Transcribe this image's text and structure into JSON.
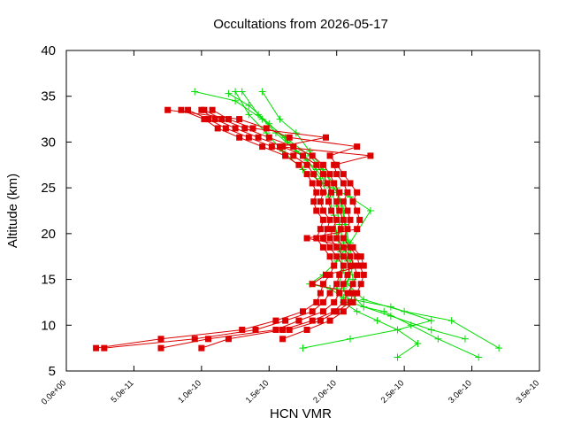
{
  "chart_data": {
    "type": "line",
    "title": "Occultations from 2026-05-17",
    "xlabel": "HCN VMR",
    "ylabel": "Altitude (km)",
    "xlim": [
      0,
      3.5e-10
    ],
    "ylim": [
      5,
      40
    ],
    "x_ticks": [
      0,
      5e-11,
      1e-10,
      1.5e-10,
      2e-10,
      2.5e-10,
      3e-10,
      3.5e-10
    ],
    "x_tick_labels": [
      "0.0e+00",
      "5.0e-11",
      "1.0e-10",
      "1.5e-10",
      "2.0e-10",
      "2.5e-10",
      "3.0e-10",
      "3.5e-10"
    ],
    "y_ticks": [
      5,
      10,
      15,
      20,
      25,
      30,
      35,
      40
    ],
    "y_tick_labels": [
      "5",
      "10",
      "15",
      "20",
      "25",
      "30",
      "35",
      "40"
    ],
    "grid": false,
    "legend": "none",
    "series": [
      {
        "marker": "plus",
        "color": "#00dd00",
        "profiles": [
          [
            [
              2.95e-10,
              8.5
            ],
            [
              2.7e-10,
              9.5
            ],
            [
              2.4e-10,
              11
            ],
            [
              2.1e-10,
              12.5
            ],
            [
              2.05e-10,
              14
            ],
            [
              2.1e-10,
              15.5
            ],
            [
              2.08e-10,
              17
            ],
            [
              2.05e-10,
              19
            ],
            [
              2.02e-10,
              21
            ],
            [
              2e-10,
              23
            ],
            [
              1.95e-10,
              25
            ],
            [
              1.85e-10,
              27
            ],
            [
              1.7e-10,
              29
            ],
            [
              1.55e-10,
              31
            ],
            [
              1.42e-10,
              33
            ],
            [
              1.3e-10,
              35.5
            ]
          ],
          [
            [
              3.2e-10,
              7.5
            ],
            [
              2.85e-10,
              10.5
            ],
            [
              2.5e-10,
              11.5
            ],
            [
              2.2e-10,
              12.8
            ],
            [
              2.08e-10,
              14.5
            ],
            [
              2.12e-10,
              16.5
            ],
            [
              2.1e-10,
              18.5
            ],
            [
              2.07e-10,
              20.5
            ],
            [
              2.05e-10,
              22.5
            ],
            [
              2e-10,
              24.5
            ],
            [
              1.92e-10,
              26.5
            ],
            [
              1.8e-10,
              28.5
            ],
            [
              1.62e-10,
              30.5
            ],
            [
              1.45e-10,
              32.5
            ],
            [
              1.25e-10,
              34.5
            ],
            [
              9.5e-11,
              35.5
            ]
          ],
          [
            [
              2.45e-10,
              6.5
            ],
            [
              2.6e-10,
              8
            ],
            [
              2.45e-10,
              9.5
            ],
            [
              2.3e-10,
              10.5
            ],
            [
              2.15e-10,
              11.5
            ],
            [
              2.05e-10,
              12.5
            ],
            [
              2e-10,
              14
            ],
            [
              2.05e-10,
              16
            ],
            [
              2.03e-10,
              18
            ],
            [
              2e-10,
              20
            ],
            [
              1.98e-10,
              22
            ],
            [
              1.94e-10,
              24
            ],
            [
              1.88e-10,
              26
            ],
            [
              1.78e-10,
              28
            ],
            [
              1.64e-10,
              30
            ],
            [
              1.5e-10,
              32
            ],
            [
              1.35e-10,
              34
            ],
            [
              1.2e-10,
              35.3
            ]
          ],
          [
            [
              1.75e-10,
              7.5
            ],
            [
              2.1e-10,
              8.5
            ],
            [
              2.45e-10,
              9.5
            ],
            [
              2.7e-10,
              10.5
            ],
            [
              2.4e-10,
              12
            ],
            [
              2.05e-10,
              13
            ],
            [
              1.95e-10,
              14
            ],
            [
              1.8e-10,
              14.5
            ],
            [
              1.9e-10,
              15.5
            ],
            [
              2e-10,
              17
            ],
            [
              2.1e-10,
              19
            ],
            [
              2.25e-10,
              22.5
            ],
            [
              2.1e-10,
              24
            ],
            [
              1.9e-10,
              25.5
            ],
            [
              1.75e-10,
              27
            ],
            [
              1.6e-10,
              29
            ],
            [
              1.48e-10,
              31
            ],
            [
              1.35e-10,
              33
            ],
            [
              1.25e-10,
              35.5
            ]
          ],
          [
            [
              3.05e-10,
              6.5
            ],
            [
              2.75e-10,
              8.5
            ],
            [
              2.55e-10,
              10
            ],
            [
              2.35e-10,
              11.5
            ],
            [
              2.2e-10,
              12
            ],
            [
              2.1e-10,
              13.5
            ],
            [
              2.12e-10,
              15
            ],
            [
              2.1e-10,
              17
            ],
            [
              2.08e-10,
              19
            ],
            [
              2.06e-10,
              21
            ],
            [
              2.04e-10,
              23
            ],
            [
              2e-10,
              25
            ],
            [
              1.9e-10,
              27
            ],
            [
              1.8e-10,
              29
            ],
            [
              1.7e-10,
              31
            ],
            [
              1.58e-10,
              32.5
            ],
            [
              1.45e-10,
              35.5
            ]
          ]
        ]
      },
      {
        "marker": "square",
        "color": "#dd0000",
        "profiles": [
          [
            [
              2.2e-11,
              7.5
            ],
            [
              7e-11,
              8.5
            ],
            [
              1.3e-10,
              9.5
            ],
            [
              1.55e-10,
              10.5
            ],
            [
              1.75e-10,
              11.5
            ],
            [
              1.85e-10,
              12.5
            ],
            [
              1.88e-10,
              13.5
            ],
            [
              1.9e-10,
              14.5
            ],
            [
              1.95e-10,
              15.5
            ],
            [
              1.98e-10,
              16.5
            ],
            [
              1.95e-10,
              17.5
            ],
            [
              1.9e-10,
              18.5
            ],
            [
              1.85e-10,
              19.5
            ],
            [
              1.88e-10,
              20.5
            ],
            [
              1.9e-10,
              21.5
            ],
            [
              1.85e-10,
              22.5
            ],
            [
              1.83e-10,
              23.5
            ],
            [
              1.85e-10,
              24.5
            ],
            [
              1.82e-10,
              25.5
            ],
            [
              1.78e-10,
              26.5
            ],
            [
              1.72e-10,
              27.5
            ],
            [
              1.62e-10,
              28.5
            ],
            [
              1.45e-10,
              29.5
            ],
            [
              1.28e-10,
              30.5
            ],
            [
              1.12e-10,
              31.5
            ],
            [
              1.02e-10,
              32.5
            ],
            [
              8.5e-11,
              33.5
            ]
          ],
          [
            [
              2.8e-11,
              7.5
            ],
            [
              9.5e-11,
              8.5
            ],
            [
              1.4e-10,
              9.5
            ],
            [
              1.62e-10,
              10.5
            ],
            [
              1.82e-10,
              11.5
            ],
            [
              1.9e-10,
              12.5
            ],
            [
              1.95e-10,
              13.5
            ],
            [
              2e-10,
              14.5
            ],
            [
              2.02e-10,
              15.5
            ],
            [
              2.05e-10,
              16.5
            ],
            [
              2e-10,
              17.5
            ],
            [
              1.95e-10,
              18.5
            ],
            [
              1.9e-10,
              19.5
            ],
            [
              1.93e-10,
              20.5
            ],
            [
              1.95e-10,
              21.5
            ],
            [
              1.9e-10,
              22.5
            ],
            [
              1.88e-10,
              23.5
            ],
            [
              1.9e-10,
              24.5
            ],
            [
              1.87e-10,
              25.5
            ],
            [
              1.83e-10,
              26.5
            ],
            [
              1.78e-10,
              27.5
            ],
            [
              1.68e-10,
              28.5
            ],
            [
              1.52e-10,
              29.5
            ],
            [
              1.35e-10,
              30.5
            ],
            [
              1.18e-10,
              31.5
            ],
            [
              1.05e-10,
              32.5
            ],
            [
              9e-11,
              33.5
            ]
          ],
          [
            [
              7e-11,
              7.5
            ],
            [
              1.05e-10,
              8.5
            ],
            [
              1.55e-10,
              9.5
            ],
            [
              1.72e-10,
              10.5
            ],
            [
              1.9e-10,
              11.5
            ],
            [
              1.98e-10,
              12.5
            ],
            [
              2.02e-10,
              13.5
            ],
            [
              2.05e-10,
              14.5
            ],
            [
              2.08e-10,
              15.5
            ],
            [
              2.1e-10,
              16.5
            ],
            [
              2.05e-10,
              17.5
            ],
            [
              2e-10,
              18.5
            ],
            [
              1.95e-10,
              19.5
            ],
            [
              1.97e-10,
              20.5
            ],
            [
              2e-10,
              21.5
            ],
            [
              1.96e-10,
              22.5
            ],
            [
              1.94e-10,
              23.5
            ],
            [
              1.96e-10,
              24.5
            ],
            [
              1.93e-10,
              25.5
            ],
            [
              1.9e-10,
              26.5
            ],
            [
              1.85e-10,
              27.5
            ],
            [
              1.75e-10,
              28.5
            ],
            [
              1.6e-10,
              29.5
            ],
            [
              1.42e-10,
              30.5
            ],
            [
              1.25e-10,
              31.5
            ],
            [
              1.1e-10,
              32.5
            ],
            [
              1e-10,
              33.5
            ]
          ],
          [
            [
              1e-10,
              7.5
            ],
            [
              1.2e-10,
              8.5
            ],
            [
              1.6e-10,
              9.5
            ],
            [
              1.82e-10,
              10.5
            ],
            [
              1.98e-10,
              11.5
            ],
            [
              2.05e-10,
              12.5
            ],
            [
              2.08e-10,
              13.5
            ],
            [
              2.12e-10,
              14.5
            ],
            [
              2.15e-10,
              15.5
            ],
            [
              2.13e-10,
              16.5
            ],
            [
              2.1e-10,
              17.5
            ],
            [
              2.05e-10,
              18.5
            ],
            [
              2e-10,
              19.5
            ],
            [
              2.03e-10,
              20.5
            ],
            [
              2.05e-10,
              21.5
            ],
            [
              2.02e-10,
              22.5
            ],
            [
              2e-10,
              23.5
            ],
            [
              2.02e-10,
              24.5
            ],
            [
              1.98e-10,
              25.5
            ],
            [
              1.95e-10,
              26.5
            ],
            [
              1.9e-10,
              27.5
            ],
            [
              1.82e-10,
              28.5
            ],
            [
              1.68e-10,
              29.5
            ],
            [
              1.5e-10,
              30.5
            ],
            [
              1.32e-10,
              31.5
            ],
            [
              1.15e-10,
              32.5
            ],
            [
              1.02e-10,
              33.5
            ]
          ],
          [
            [
              1.6e-10,
              8.5
            ],
            [
              1.78e-10,
              9.5
            ],
            [
              1.95e-10,
              10.5
            ],
            [
              2.05e-10,
              11.5
            ],
            [
              2.12e-10,
              12.5
            ],
            [
              2.15e-10,
              13.5
            ],
            [
              2.18e-10,
              14.5
            ],
            [
              2.2e-10,
              15.5
            ],
            [
              2.17e-10,
              16.5
            ],
            [
              2.15e-10,
              17.5
            ],
            [
              2.1e-10,
              18.5
            ],
            [
              2.05e-10,
              19.5
            ],
            [
              2.08e-10,
              20.5
            ],
            [
              2.1e-10,
              21.5
            ],
            [
              2.08e-10,
              22.5
            ],
            [
              2.05e-10,
              23.5
            ],
            [
              2.08e-10,
              24.5
            ],
            [
              2.05e-10,
              25.5
            ],
            [
              2e-10,
              26.5
            ],
            [
              1.98e-10,
              27.5
            ],
            [
              2.25e-10,
              28.5
            ],
            [
              1.58e-10,
              29.5
            ],
            [
              1.92e-10,
              30.5
            ],
            [
              1.38e-10,
              31.5
            ],
            [
              1.2e-10,
              32.5
            ],
            [
              1.08e-10,
              33.5
            ]
          ],
          [
            [
              1.65e-10,
              9.5
            ],
            [
              1.88e-10,
              10.5
            ],
            [
              2e-10,
              11.5
            ],
            [
              2.1e-10,
              12.5
            ],
            [
              2.12e-10,
              13.5
            ],
            [
              1.82e-10,
              14.5
            ],
            [
              1.92e-10,
              15.5
            ],
            [
              2.2e-10,
              16.5
            ],
            [
              2.18e-10,
              17.5
            ],
            [
              2.12e-10,
              18.5
            ],
            [
              1.78e-10,
              19.5
            ],
            [
              2.15e-10,
              20.5
            ],
            [
              2.17e-10,
              21.5
            ],
            [
              2.15e-10,
              22.5
            ],
            [
              2.12e-10,
              23.5
            ],
            [
              2.15e-10,
              24.5
            ],
            [
              2.1e-10,
              25.5
            ],
            [
              2.05e-10,
              26.5
            ],
            [
              2e-10,
              27.5
            ],
            [
              1.95e-10,
              28.5
            ],
            [
              2.15e-10,
              29.5
            ],
            [
              1.65e-10,
              30.5
            ],
            [
              1.48e-10,
              31.5
            ],
            [
              1.28e-10,
              32.5
            ],
            [
              7.5e-11,
              33.5
            ]
          ]
        ]
      }
    ]
  }
}
